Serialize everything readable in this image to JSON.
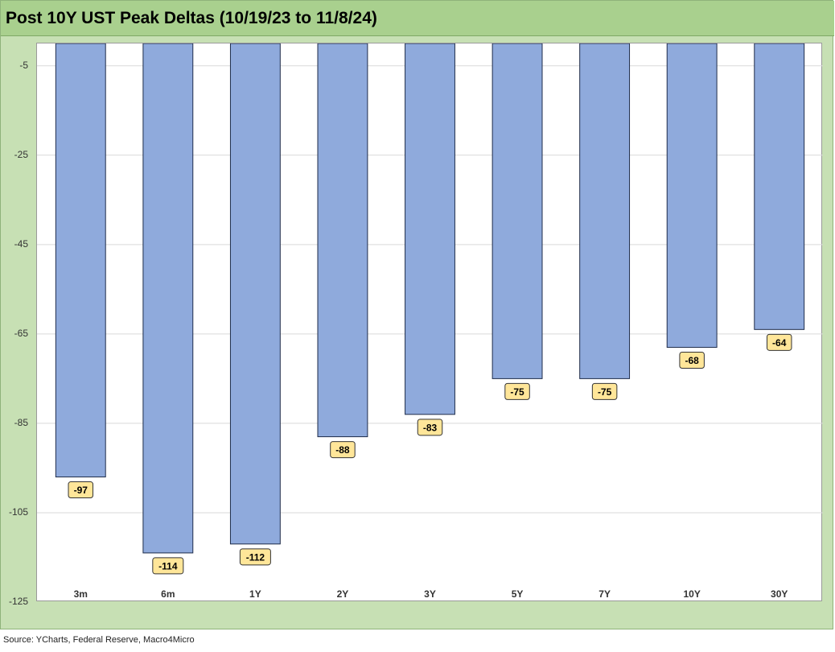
{
  "title": "Post 10Y UST Peak Deltas (10/19/23 to 11/8/24)",
  "source": "Source: YCharts, Federal Reserve, Macro4Micro",
  "colors": {
    "frame": "#c7e0b4",
    "title_bar": "#a9d08e",
    "bar": "#8faadc",
    "bar_border": "#1f2d4a",
    "label_fill": "#ffe699",
    "grid": "#d9d9d9"
  },
  "chart_data": {
    "type": "bar",
    "title": "Post 10Y UST Peak Deltas (10/19/23 to 11/8/24)",
    "xlabel": "",
    "ylabel": "",
    "categories": [
      "3m",
      "6m",
      "1Y",
      "2Y",
      "3Y",
      "5Y",
      "7Y",
      "10Y",
      "30Y"
    ],
    "values": [
      -97,
      -114,
      -112,
      -88,
      -83,
      -75,
      -75,
      -68,
      -64
    ],
    "data_labels": [
      "-97",
      "-114",
      "-112",
      "-88",
      "-83",
      "-75",
      "-75",
      "-68",
      "-64"
    ],
    "ylim": [
      -125,
      0
    ],
    "yticks": [
      -5,
      -25,
      -45,
      -65,
      -85,
      -105,
      -125
    ],
    "ytick_labels": [
      "-5",
      "-25",
      "-45",
      "-65",
      "-85",
      "-105",
      "-125"
    ],
    "grid": true,
    "legend": "none"
  }
}
